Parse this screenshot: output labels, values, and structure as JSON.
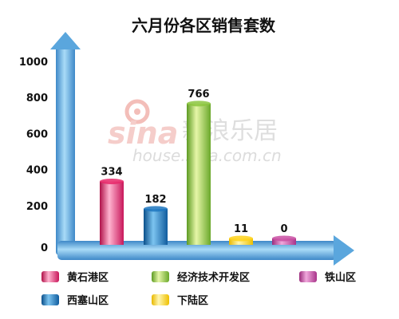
{
  "chart_data": {
    "type": "bar",
    "title": "六月份各区销售套数",
    "categories": [
      "黄石港区",
      "西塞山区",
      "经济技术开发区",
      "下陆区",
      "铁山区"
    ],
    "values": [
      334,
      182,
      766,
      11,
      0
    ],
    "value_labels": [
      "334",
      "182",
      "766",
      "11",
      "0"
    ],
    "ylim": [
      0,
      1000
    ],
    "yticks": [
      "0",
      "200",
      "400",
      "600",
      "800",
      "1000"
    ],
    "xlabel": "",
    "ylabel": "",
    "grid": false,
    "legend": "bottom",
    "colors": [
      "#e8286a",
      "#1f77bf",
      "#8cc63f",
      "#ffd21a",
      "#c94fa2"
    ]
  },
  "watermark": {
    "brand_latin": "sina",
    "brand_cn": "新浪乐居",
    "url": "house.sina.com.cn"
  }
}
